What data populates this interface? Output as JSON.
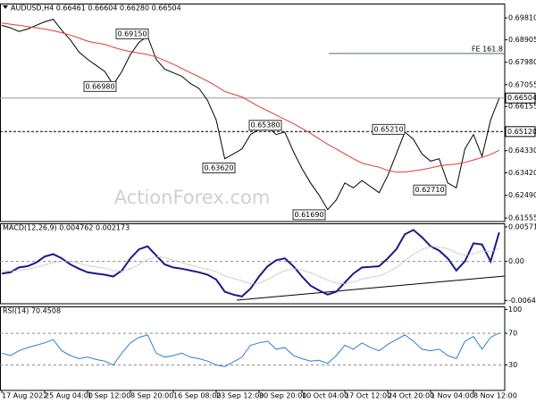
{
  "chart_data": [
    {
      "type": "line",
      "title": "AUDUSD,H4  0.66461 0.66604 0.66280 0.66504",
      "watermark": "ActionForex.com",
      "categories": [
        "17 Aug 2022",
        null,
        null,
        null,
        null,
        "25 Aug 04:00",
        null,
        null,
        null,
        null,
        "1 Sep 12:00",
        null,
        null,
        null,
        null,
        "8 Sep 20:00",
        null,
        null,
        null,
        null,
        "16 Sep 08:00",
        null,
        null,
        null,
        null,
        "23 Sep 12:00",
        null,
        null,
        null,
        null,
        "30 Sep 20:00",
        null,
        null,
        null,
        null,
        "10 Oct 04:00",
        null,
        null,
        null,
        null,
        "17 Oct 12:00",
        null,
        null,
        null,
        null,
        "24 Oct 20:00",
        null,
        null,
        null,
        null,
        "1 Nov 04:00",
        null,
        null,
        null,
        null,
        "8 Nov 12:00",
        null,
        null,
        null
      ],
      "series": [
        {
          "color": "#000000",
          "values": [
            0.695,
            0.694,
            0.6925,
            0.6935,
            0.695,
            0.6965,
            0.6975,
            0.693,
            0.689,
            0.684,
            0.681,
            0.6785,
            0.676,
            0.6705,
            0.676,
            0.683,
            0.688,
            0.6905,
            0.681,
            0.677,
            0.6755,
            0.674,
            0.671,
            0.669,
            0.664,
            0.656,
            0.64,
            0.642,
            0.644,
            0.65,
            0.652,
            0.653,
            0.65,
            0.651,
            0.643,
            0.636,
            0.63,
            0.625,
            0.619,
            0.623,
            0.63,
            0.628,
            0.631,
            0.6285,
            0.626,
            0.633,
            0.642,
            0.651,
            0.648,
            0.642,
            0.639,
            0.64,
            0.63,
            0.628,
            0.644,
            0.65,
            0.641,
            0.656,
            0.665
          ]
        },
        {
          "color": "#e53935",
          "values": [
            0.696,
            0.6955,
            0.695,
            0.6945,
            0.694,
            0.6935,
            0.6928,
            0.692,
            0.691,
            0.6898,
            0.6885,
            0.6878,
            0.6872,
            0.686,
            0.685,
            0.6842,
            0.6836,
            0.683,
            0.682,
            0.6805,
            0.679,
            0.6772,
            0.6755,
            0.6738,
            0.672,
            0.67,
            0.6678,
            0.6666,
            0.6655,
            0.6635,
            0.6615,
            0.6598,
            0.658,
            0.6562,
            0.6545,
            0.6525,
            0.6505,
            0.6482,
            0.646,
            0.644,
            0.642,
            0.64,
            0.6382,
            0.6373,
            0.6365,
            0.6352,
            0.6345,
            0.6345,
            0.635,
            0.6355,
            0.6362,
            0.637,
            0.6375,
            0.6378,
            0.6385,
            0.6395,
            0.6405,
            0.6418,
            0.6435
          ]
        }
      ],
      "ylim": [
        0.6141,
        0.704
      ],
      "yticks": [
        {
          "value": 0.6981,
          "label": "0.69810"
        },
        {
          "value": 0.68905,
          "label": "0.68905"
        },
        {
          "value": 0.6798,
          "label": "0.67980"
        },
        {
          "value": 0.67055,
          "label": "0.67055"
        },
        {
          "value": 0.66155,
          "label": "0.66155"
        },
        {
          "value": 0.6433,
          "label": "0.64330"
        },
        {
          "value": 0.6342,
          "label": "0.63420"
        },
        {
          "value": 0.6249,
          "label": "0.62490"
        },
        {
          "value": 0.61555,
          "label": "0.61555"
        }
      ],
      "annotations": [
        {
          "value": 0.6915,
          "label": "0.69150"
        },
        {
          "value": 0.6698,
          "label": "0.66980"
        },
        {
          "value": 0.6538,
          "label": "0.65380"
        },
        {
          "value": 0.6362,
          "label": "0.63620"
        },
        {
          "value": 0.6521,
          "label": "0.65210"
        },
        {
          "value": 0.6271,
          "label": "0.62710"
        },
        {
          "value": 0.6169,
          "label": "0.61690"
        }
      ],
      "fe_level": {
        "value": 0.6834,
        "label": "FE 161.8"
      },
      "hline": {
        "value": 0.6512,
        "label": "0.65120"
      },
      "last_price": {
        "value": 0.66504,
        "label": "0.66504"
      }
    },
    {
      "type": "line",
      "title": "MACD(12,26,9) 0.004762 0.002173",
      "series": [
        {
          "color": "#1a1a8c",
          "values": [
            -0.002,
            -0.0018,
            -0.001,
            -0.0008,
            -0.0002,
            0.0008,
            0.0012,
            0.0005,
            -0.0005,
            -0.0012,
            -0.0018,
            -0.002,
            -0.0022,
            -0.0025,
            -0.0015,
            0.0005,
            0.002,
            0.0025,
            0.001,
            -0.0005,
            -0.001,
            -0.0012,
            -0.0015,
            -0.0018,
            -0.0022,
            -0.003,
            -0.005,
            -0.0055,
            -0.0058,
            -0.0045,
            -0.0025,
            -0.0008,
            0.0002,
            0.0005,
            -0.0008,
            -0.0025,
            -0.004,
            -0.0048,
            -0.0055,
            -0.005,
            -0.0035,
            -0.002,
            -0.001,
            -0.0009,
            -0.0008,
            0.0005,
            0.002,
            0.0045,
            0.0052,
            0.004,
            0.0025,
            0.0018,
            0.0005,
            -0.0015,
            0.0,
            0.003,
            0.0028,
            0.0,
            0.0048
          ]
        },
        {
          "color": "#b8b8b8",
          "values": [
            -0.0015,
            -0.0016,
            -0.0015,
            -0.0013,
            -0.001,
            -0.0006,
            -0.0002,
            0.0001,
            0.0,
            -0.0003,
            -0.0007,
            -0.0009,
            -0.0011,
            -0.0015,
            -0.0016,
            -0.0012,
            -0.0005,
            0.0003,
            0.0008,
            0.0006,
            0.0002,
            -0.0002,
            -0.0006,
            -0.001,
            -0.0013,
            -0.0017,
            -0.0024,
            -0.0028,
            -0.0032,
            -0.0037,
            -0.0036,
            -0.003,
            -0.0022,
            -0.0015,
            -0.0012,
            -0.0014,
            -0.0019,
            -0.0025,
            -0.0031,
            -0.0036,
            -0.0037,
            -0.0034,
            -0.0029,
            -0.0026,
            -0.0024,
            -0.0018,
            -0.001,
            0.0001,
            0.0012,
            0.002,
            0.0024,
            0.0024,
            0.0021,
            0.0014,
            0.001,
            0.0013,
            0.0017,
            0.0016,
            0.0022
          ]
        }
      ],
      "ylim": [
        -0.007,
        0.0063
      ],
      "yticks": [
        0.005717,
        {
          "value": 0,
          "label": "0.00"
        },
        -0.006451
      ],
      "zero_line": true
    },
    {
      "type": "line",
      "title": "RSI(14) 70.4508",
      "series": [
        {
          "color": "#2a7fd4",
          "values": [
            45,
            42,
            48,
            52,
            55,
            58,
            62,
            48,
            42,
            38,
            40,
            37,
            35,
            30,
            45,
            58,
            65,
            68,
            45,
            40,
            42,
            45,
            40,
            38,
            35,
            30,
            28,
            34,
            40,
            55,
            58,
            60,
            50,
            52,
            42,
            38,
            35,
            36,
            32,
            42,
            55,
            50,
            58,
            52,
            48,
            56,
            62,
            68,
            60,
            50,
            48,
            50,
            42,
            38,
            60,
            66,
            50,
            65,
            70.4508
          ]
        }
      ],
      "ylim": [
        -2,
        104
      ],
      "yticks": [
        100,
        70,
        30
      ],
      "levels": [
        70,
        30
      ]
    }
  ]
}
